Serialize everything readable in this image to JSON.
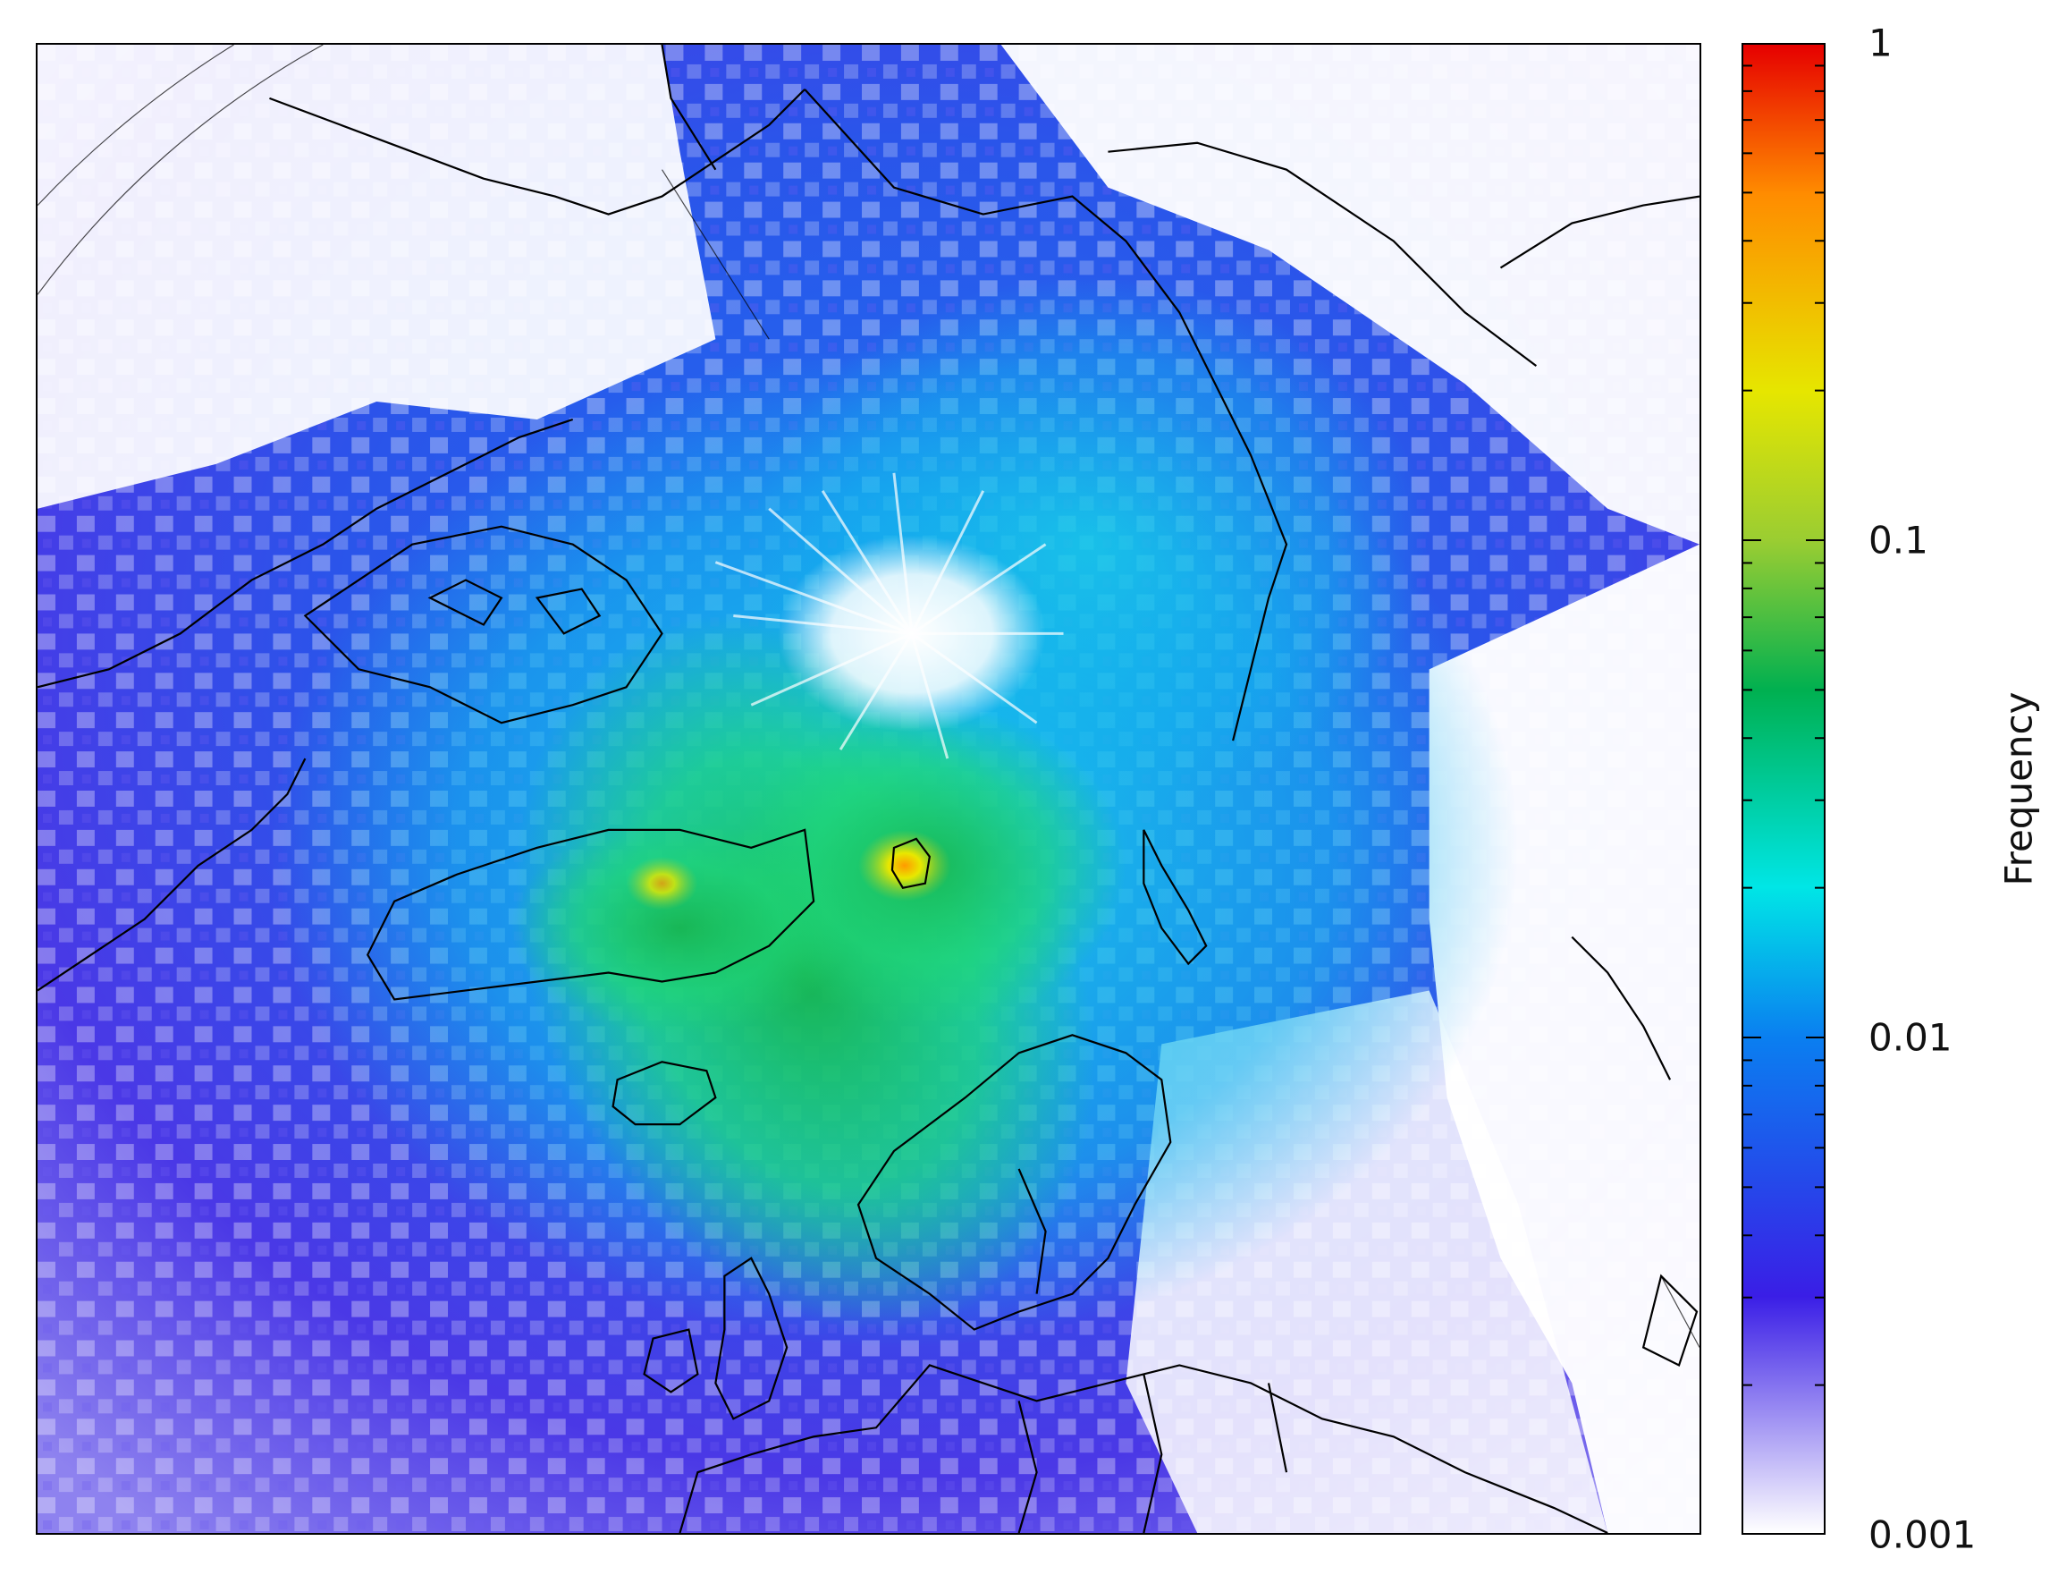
{
  "map": {
    "region": "Northern Hemisphere polar stereographic projection",
    "field": "frequency",
    "scale": "log",
    "color_stops": [
      {
        "value": 0.001,
        "color": "#ffffff"
      },
      {
        "value": 0.003,
        "color": "#3a1ee6"
      },
      {
        "value": 0.01,
        "color": "#0a7ff0"
      },
      {
        "value": 0.02,
        "color": "#00e6e6"
      },
      {
        "value": 0.05,
        "color": "#00b050"
      },
      {
        "value": 0.1,
        "color": "#9acd32"
      },
      {
        "value": 0.2,
        "color": "#e6e600"
      },
      {
        "value": 0.5,
        "color": "#ff8c00"
      },
      {
        "value": 1,
        "color": "#e60000"
      }
    ]
  },
  "colorbar": {
    "title": "Frequency",
    "ticks": [
      {
        "label": "1",
        "value": 1
      },
      {
        "label": "0.1",
        "value": 0.1
      },
      {
        "label": "0.01",
        "value": 0.01
      },
      {
        "label": "0.001",
        "value": 0.001
      }
    ],
    "range": [
      0.001,
      1
    ]
  }
}
